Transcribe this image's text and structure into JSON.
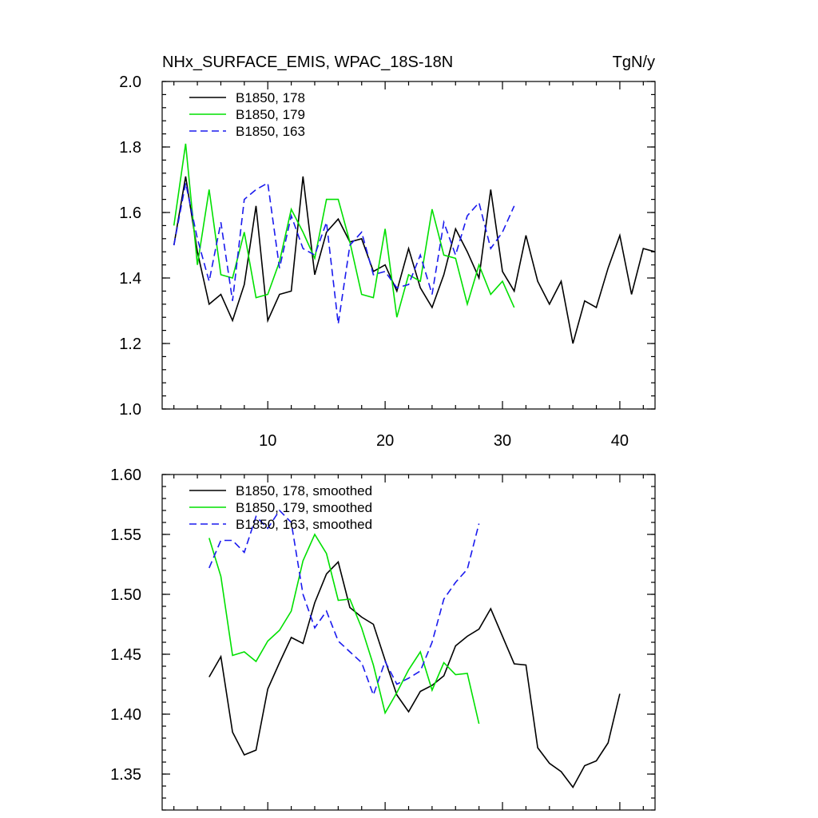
{
  "chart_data": [
    {
      "type": "line",
      "title": "NHx_SURFACE_EMIS, WPAC_18S-18N",
      "units": "TgN/y",
      "xlim": [
        1,
        43
      ],
      "ylim": [
        1.0,
        2.0
      ],
      "xticks": [
        10,
        20,
        30,
        40
      ],
      "yticks": [
        1.0,
        1.2,
        1.4,
        1.6,
        1.8,
        2.0
      ],
      "ytick_labels": [
        "1.0",
        "1.2",
        "1.4",
        "1.6",
        "1.8",
        "2.0"
      ],
      "legend_position": "top-left",
      "series": [
        {
          "name": "B1850, 178",
          "color": "#000000",
          "dash": "solid",
          "x": [
            2,
            3,
            4,
            5,
            6,
            7,
            8,
            9,
            10,
            11,
            12,
            13,
            14,
            15,
            16,
            17,
            18,
            19,
            20,
            21,
            22,
            23,
            24,
            25,
            26,
            27,
            28,
            29,
            30,
            31,
            32,
            33,
            34,
            35,
            36,
            37,
            38,
            39,
            40,
            41,
            42,
            43
          ],
          "values": [
            1.5,
            1.71,
            1.48,
            1.32,
            1.35,
            1.27,
            1.38,
            1.62,
            1.27,
            1.35,
            1.36,
            1.71,
            1.41,
            1.54,
            1.58,
            1.51,
            1.52,
            1.42,
            1.44,
            1.36,
            1.49,
            1.37,
            1.31,
            1.41,
            1.55,
            1.48,
            1.4,
            1.67,
            1.42,
            1.36,
            1.53,
            1.39,
            1.32,
            1.39,
            1.2,
            1.33,
            1.31,
            1.43,
            1.53,
            1.35,
            1.49,
            1.48
          ]
        },
        {
          "name": "B1850, 179",
          "color": "#00e000",
          "dash": "solid",
          "x": [
            2,
            3,
            4,
            5,
            6,
            7,
            8,
            9,
            10,
            11,
            12,
            13,
            14,
            15,
            16,
            17,
            18,
            19,
            20,
            21,
            22,
            23,
            24,
            25,
            26,
            27,
            28,
            29,
            30,
            31
          ],
          "values": [
            1.56,
            1.81,
            1.44,
            1.67,
            1.41,
            1.4,
            1.54,
            1.34,
            1.35,
            1.45,
            1.61,
            1.54,
            1.46,
            1.64,
            1.64,
            1.51,
            1.35,
            1.34,
            1.55,
            1.28,
            1.41,
            1.39,
            1.61,
            1.47,
            1.46,
            1.32,
            1.44,
            1.35,
            1.39,
            1.31
          ]
        },
        {
          "name": "B1850, 163",
          "color": "#1a1aee",
          "dash": "dashed",
          "x": [
            2,
            3,
            4,
            5,
            6,
            7,
            8,
            9,
            10,
            11,
            12,
            13,
            14,
            15,
            16,
            17,
            18,
            19,
            20,
            21,
            22,
            23,
            24,
            25,
            26,
            27,
            28,
            29,
            30,
            31
          ],
          "values": [
            1.5,
            1.69,
            1.52,
            1.39,
            1.57,
            1.33,
            1.64,
            1.67,
            1.69,
            1.43,
            1.59,
            1.49,
            1.47,
            1.57,
            1.26,
            1.5,
            1.54,
            1.41,
            1.42,
            1.37,
            1.38,
            1.47,
            1.35,
            1.57,
            1.47,
            1.59,
            1.63,
            1.49,
            1.54,
            1.62
          ]
        }
      ]
    },
    {
      "type": "line",
      "title": "",
      "xlim": [
        1,
        43
      ],
      "ylim": [
        1.32,
        1.6
      ],
      "xticks": [
        10,
        20,
        30,
        40
      ],
      "yticks": [
        1.35,
        1.4,
        1.45,
        1.5,
        1.55,
        1.6
      ],
      "ytick_labels": [
        "1.35",
        "1.40",
        "1.45",
        "1.50",
        "1.55",
        "1.60"
      ],
      "legend_position": "top-left",
      "series": [
        {
          "name": "B1850, 178, smoothed",
          "color": "#000000",
          "dash": "solid",
          "x": [
            5,
            6,
            7,
            8,
            9,
            10,
            11,
            12,
            13,
            14,
            15,
            16,
            17,
            18,
            19,
            20,
            21,
            22,
            23,
            24,
            25,
            26,
            27,
            28,
            29,
            30,
            31,
            32,
            33,
            34,
            35,
            36,
            37,
            38,
            39,
            40
          ],
          "values": [
            1.431,
            1.448,
            1.385,
            1.366,
            1.37,
            1.421,
            1.443,
            1.464,
            1.459,
            1.493,
            1.517,
            1.527,
            1.489,
            1.481,
            1.475,
            1.445,
            1.416,
            1.402,
            1.419,
            1.424,
            1.432,
            1.457,
            1.465,
            1.471,
            1.488,
            1.465,
            1.442,
            1.441,
            1.372,
            1.359,
            1.352,
            1.339,
            1.357,
            1.361,
            1.376,
            1.417
          ]
        },
        {
          "name": "B1850, 179, smoothed",
          "color": "#00e000",
          "dash": "solid",
          "x": [
            5,
            6,
            7,
            8,
            9,
            10,
            11,
            12,
            13,
            14,
            15,
            16,
            17,
            18,
            19,
            20,
            21,
            22,
            23,
            24,
            25,
            26,
            27,
            28
          ],
          "values": [
            1.547,
            1.515,
            1.449,
            1.452,
            1.444,
            1.461,
            1.47,
            1.486,
            1.528,
            1.55,
            1.534,
            1.495,
            1.496,
            1.472,
            1.441,
            1.401,
            1.418,
            1.437,
            1.452,
            1.42,
            1.443,
            1.433,
            1.434,
            1.392
          ]
        },
        {
          "name": "B1850, 163, smoothed",
          "color": "#1a1aee",
          "dash": "dashed",
          "x": [
            5,
            6,
            7,
            8,
            9,
            10,
            11,
            12,
            13,
            14,
            15,
            16,
            17,
            18,
            19,
            20,
            21,
            22,
            23,
            24,
            25,
            26,
            27,
            28
          ],
          "values": [
            1.522,
            1.545,
            1.545,
            1.535,
            1.565,
            1.555,
            1.57,
            1.56,
            1.5,
            1.472,
            1.486,
            1.461,
            1.452,
            1.443,
            1.416,
            1.444,
            1.425,
            1.43,
            1.436,
            1.46,
            1.496,
            1.51,
            1.521,
            1.559
          ]
        }
      ]
    }
  ]
}
